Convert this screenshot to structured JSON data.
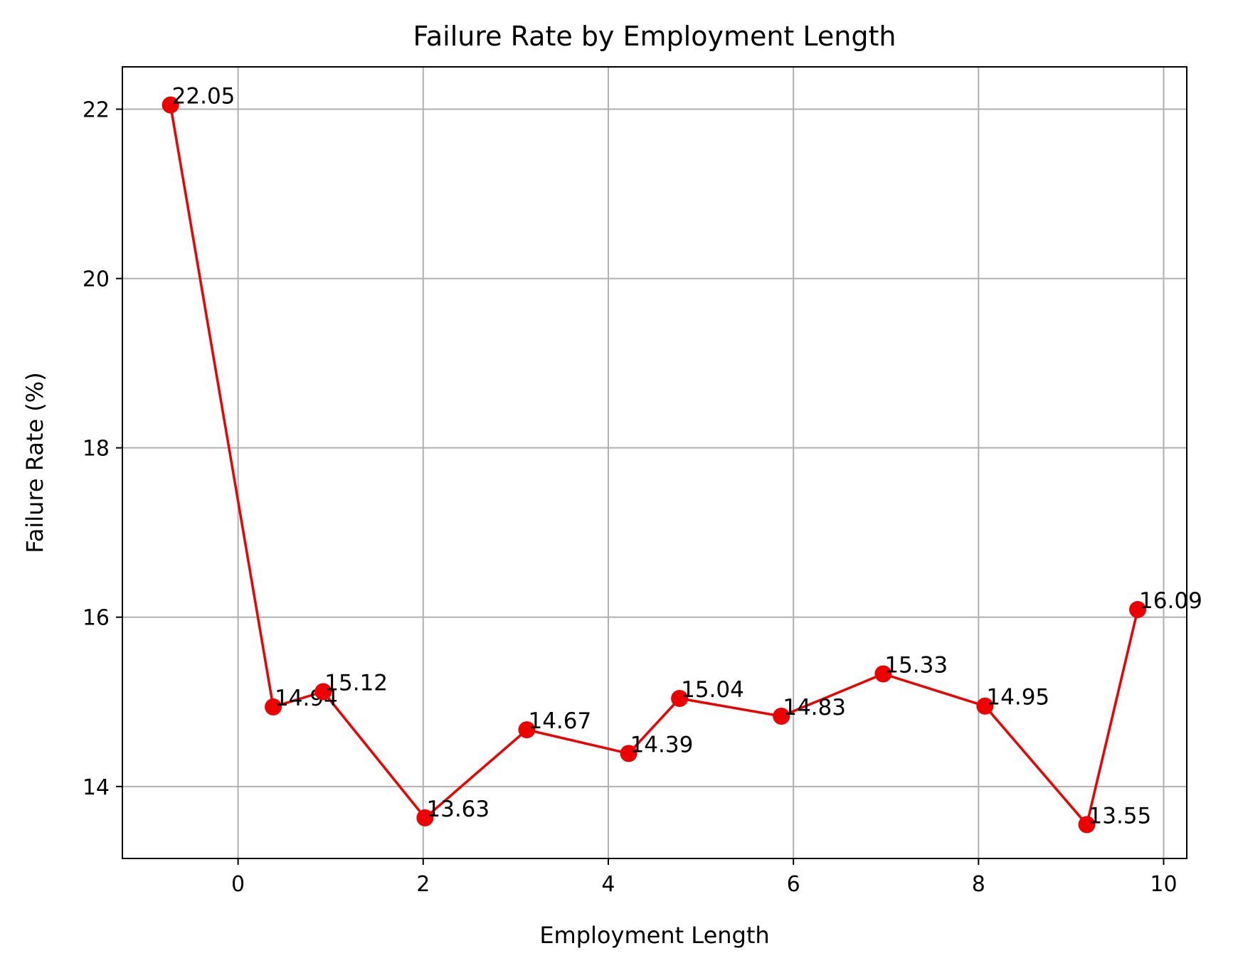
{
  "chart_data": {
    "type": "line",
    "title": "Failure Rate by Employment Length",
    "xlabel": "Employment Length",
    "ylabel": "Failure Rate (%)",
    "xlim": [
      -1.25,
      10.25
    ],
    "ylim": [
      13.15,
      22.5
    ],
    "xticks": [
      0,
      2,
      4,
      6,
      8,
      10
    ],
    "yticks": [
      14,
      16,
      18,
      20,
      22
    ],
    "grid": true,
    "series": [
      {
        "color": "#ee0000",
        "marker": "circle",
        "points": [
          {
            "x": -0.73,
            "y": 22.05,
            "label": "22.05"
          },
          {
            "x": 0.38,
            "y": 14.94,
            "label": "14.94"
          },
          {
            "x": 0.92,
            "y": 15.12,
            "label": "15.12"
          },
          {
            "x": 2.02,
            "y": 13.63,
            "label": "13.63"
          },
          {
            "x": 3.12,
            "y": 14.67,
            "label": "14.67"
          },
          {
            "x": 4.22,
            "y": 14.39,
            "label": "14.39"
          },
          {
            "x": 4.77,
            "y": 15.04,
            "label": "15.04"
          },
          {
            "x": 5.87,
            "y": 14.83,
            "label": "14.83"
          },
          {
            "x": 6.97,
            "y": 15.33,
            "label": "15.33"
          },
          {
            "x": 8.07,
            "y": 14.95,
            "label": "14.95"
          },
          {
            "x": 9.17,
            "y": 13.55,
            "label": "13.55"
          },
          {
            "x": 9.72,
            "y": 16.09,
            "label": "16.09"
          }
        ]
      }
    ]
  }
}
